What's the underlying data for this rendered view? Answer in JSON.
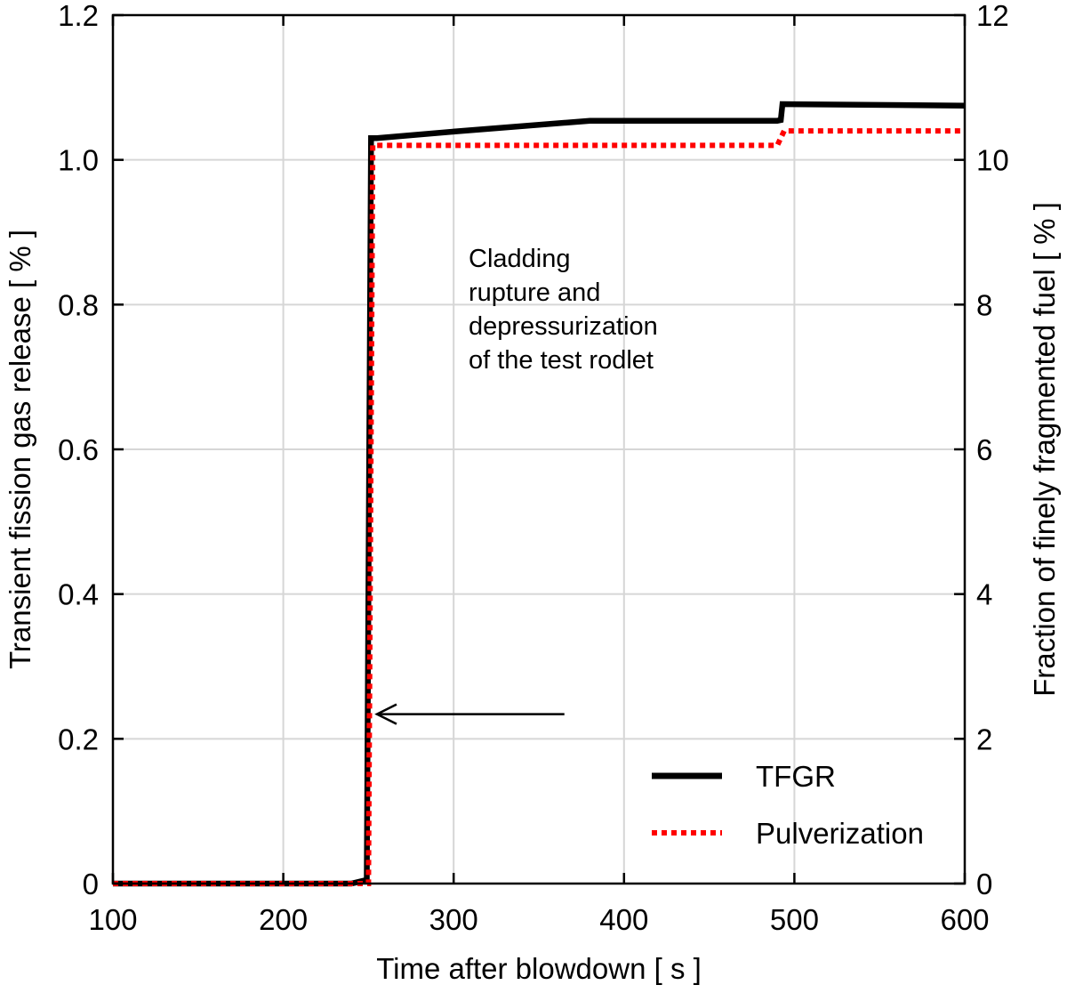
{
  "chart_data": {
    "type": "line",
    "xlabel": "Time after blowdown [ s ]",
    "ylabel_left": "Transient fission gas release [ % ]",
    "ylabel_right": "Fraction of finely fragmented fuel [ % ]",
    "xlim": [
      100,
      600
    ],
    "ylim_left": [
      0,
      1.2
    ],
    "ylim_right": [
      0,
      12
    ],
    "x_ticks": [
      100,
      200,
      300,
      400,
      500,
      600
    ],
    "x_tick_labels": [
      "100",
      "200",
      "300",
      "400",
      "500",
      "600"
    ],
    "y_left_ticks": [
      0,
      0.2,
      0.4,
      0.6,
      0.8,
      1.0,
      1.2
    ],
    "y_left_tick_labels": [
      "0",
      "0.2",
      "0.4",
      "0.6",
      "0.8",
      "1.0",
      "1.2"
    ],
    "y_right_ticks": [
      0,
      2,
      4,
      6,
      8,
      10,
      12
    ],
    "y_right_tick_labels": [
      "0",
      "2",
      "4",
      "6",
      "8",
      "10",
      "12"
    ],
    "grid": true,
    "legend_position": "bottom-right",
    "series": [
      {
        "name": "TFGR",
        "axis": "left",
        "color": "#000000",
        "style": "solid",
        "points": [
          [
            100,
            0
          ],
          [
            240,
            0.0
          ],
          [
            249,
            0.005
          ],
          [
            251.5,
            1.03
          ],
          [
            255,
            1.03
          ],
          [
            300,
            1.039
          ],
          [
            380,
            1.054
          ],
          [
            490,
            1.054
          ],
          [
            492,
            1.055
          ],
          [
            493,
            1.077
          ],
          [
            600,
            1.075
          ]
        ]
      },
      {
        "name": "Pulverization",
        "axis": "right",
        "color": "#ff0000",
        "style": "dotted",
        "points": [
          [
            100,
            0
          ],
          [
            250,
            0
          ],
          [
            252.5,
            10.2
          ],
          [
            490,
            10.2
          ],
          [
            494,
            10.4
          ],
          [
            600,
            10.4
          ]
        ]
      }
    ],
    "annotation": {
      "lines": [
        "Cladding",
        "rupture and",
        "depressurization",
        "of the test rodlet"
      ],
      "arrow_from": [
        365,
        0.234
      ],
      "arrow_to": [
        255,
        0.234
      ]
    }
  }
}
